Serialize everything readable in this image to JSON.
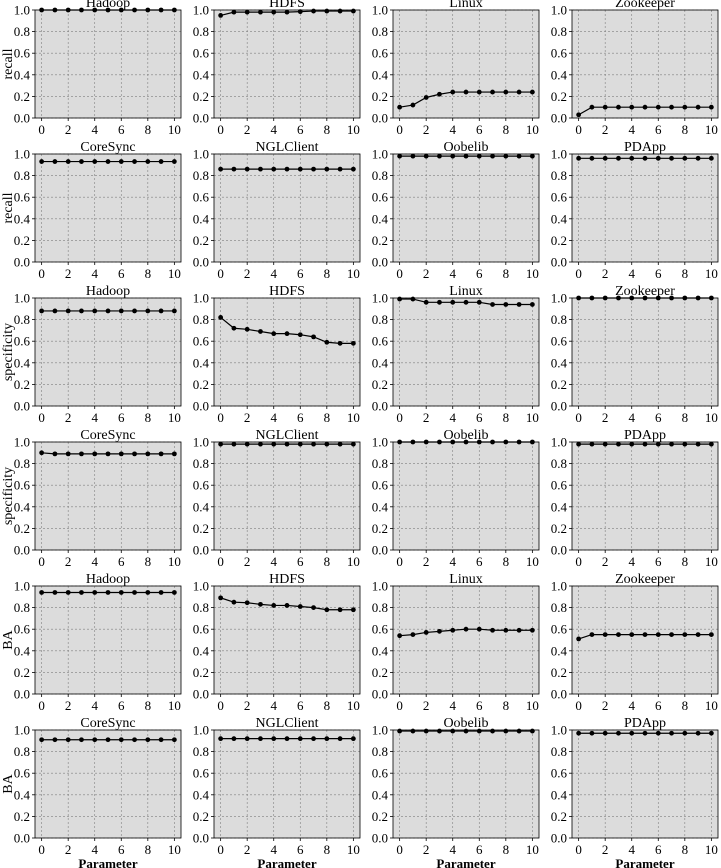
{
  "figure": {
    "x_label": "Parameter",
    "x_ticks": [
      0,
      2,
      4,
      6,
      8,
      10
    ],
    "y_ticks": [
      "0.0",
      "0.2",
      "0.4",
      "0.6",
      "0.8",
      "1.0"
    ],
    "background_color": "#dcdcdc",
    "line_color": "#000000",
    "grid_color": "#808080"
  },
  "chart_data": [
    {
      "type": "line",
      "row_label": "recall",
      "title": "Hadoop",
      "xlabel": "",
      "ylabel": "recall",
      "ylim": [
        0,
        1
      ],
      "grid": true,
      "x": [
        0,
        1,
        2,
        3,
        4,
        5,
        6,
        7,
        8,
        9,
        10
      ],
      "values": [
        1.0,
        1.0,
        1.0,
        1.0,
        1.0,
        1.0,
        1.0,
        1.0,
        1.0,
        1.0,
        1.0
      ]
    },
    {
      "type": "line",
      "row_label": "recall",
      "title": "HDFS",
      "xlabel": "",
      "ylabel": "",
      "ylim": [
        0,
        1
      ],
      "grid": true,
      "x": [
        0,
        1,
        2,
        3,
        4,
        5,
        6,
        7,
        8,
        9,
        10
      ],
      "values": [
        0.95,
        0.98,
        0.98,
        0.98,
        0.98,
        0.98,
        0.985,
        0.99,
        0.99,
        0.99,
        0.99
      ]
    },
    {
      "type": "line",
      "row_label": "recall",
      "title": "Linux",
      "xlabel": "",
      "ylabel": "",
      "ylim": [
        0,
        1
      ],
      "grid": true,
      "x": [
        0,
        1,
        2,
        3,
        4,
        5,
        6,
        7,
        8,
        9,
        10
      ],
      "values": [
        0.1,
        0.12,
        0.19,
        0.22,
        0.24,
        0.24,
        0.24,
        0.24,
        0.24,
        0.24,
        0.24
      ]
    },
    {
      "type": "line",
      "row_label": "recall",
      "title": "Zookeeper",
      "xlabel": "",
      "ylabel": "",
      "ylim": [
        0,
        1
      ],
      "grid": true,
      "x": [
        0,
        1,
        2,
        3,
        4,
        5,
        6,
        7,
        8,
        9,
        10
      ],
      "values": [
        0.03,
        0.1,
        0.1,
        0.1,
        0.1,
        0.1,
        0.1,
        0.1,
        0.1,
        0.1,
        0.1
      ]
    },
    {
      "type": "line",
      "row_label": "recall",
      "title": "CoreSync",
      "xlabel": "",
      "ylabel": "recall",
      "ylim": [
        0,
        1
      ],
      "grid": true,
      "x": [
        0,
        1,
        2,
        3,
        4,
        5,
        6,
        7,
        8,
        9,
        10
      ],
      "values": [
        0.93,
        0.93,
        0.93,
        0.93,
        0.93,
        0.93,
        0.93,
        0.93,
        0.93,
        0.93,
        0.93
      ]
    },
    {
      "type": "line",
      "row_label": "recall",
      "title": "NGLClient",
      "xlabel": "",
      "ylabel": "",
      "ylim": [
        0,
        1
      ],
      "grid": true,
      "x": [
        0,
        1,
        2,
        3,
        4,
        5,
        6,
        7,
        8,
        9,
        10
      ],
      "values": [
        0.86,
        0.86,
        0.86,
        0.86,
        0.86,
        0.86,
        0.86,
        0.86,
        0.86,
        0.86,
        0.86
      ]
    },
    {
      "type": "line",
      "row_label": "recall",
      "title": "Oobelib",
      "xlabel": "",
      "ylabel": "",
      "ylim": [
        0,
        1
      ],
      "grid": true,
      "x": [
        0,
        1,
        2,
        3,
        4,
        5,
        6,
        7,
        8,
        9,
        10
      ],
      "values": [
        0.98,
        0.98,
        0.98,
        0.98,
        0.98,
        0.98,
        0.98,
        0.98,
        0.98,
        0.98,
        0.98
      ]
    },
    {
      "type": "line",
      "row_label": "recall",
      "title": "PDApp",
      "xlabel": "",
      "ylabel": "",
      "ylim": [
        0,
        1
      ],
      "grid": true,
      "x": [
        0,
        1,
        2,
        3,
        4,
        5,
        6,
        7,
        8,
        9,
        10
      ],
      "values": [
        0.96,
        0.96,
        0.96,
        0.96,
        0.96,
        0.96,
        0.96,
        0.96,
        0.96,
        0.96,
        0.96
      ]
    },
    {
      "type": "line",
      "row_label": "specificity",
      "title": "Hadoop",
      "xlabel": "",
      "ylabel": "specificity",
      "ylim": [
        0,
        1
      ],
      "grid": true,
      "x": [
        0,
        1,
        2,
        3,
        4,
        5,
        6,
        7,
        8,
        9,
        10
      ],
      "values": [
        0.88,
        0.88,
        0.88,
        0.88,
        0.88,
        0.88,
        0.88,
        0.88,
        0.88,
        0.88,
        0.88
      ]
    },
    {
      "type": "line",
      "row_label": "specificity",
      "title": "HDFS",
      "xlabel": "",
      "ylabel": "",
      "ylim": [
        0,
        1
      ],
      "grid": true,
      "x": [
        0,
        1,
        2,
        3,
        4,
        5,
        6,
        7,
        8,
        9,
        10
      ],
      "values": [
        0.82,
        0.72,
        0.71,
        0.69,
        0.67,
        0.67,
        0.66,
        0.64,
        0.59,
        0.58,
        0.58
      ]
    },
    {
      "type": "line",
      "row_label": "specificity",
      "title": "Linux",
      "xlabel": "",
      "ylabel": "",
      "ylim": [
        0,
        1
      ],
      "grid": true,
      "x": [
        0,
        1,
        2,
        3,
        4,
        5,
        6,
        7,
        8,
        9,
        10
      ],
      "values": [
        0.99,
        0.99,
        0.96,
        0.96,
        0.96,
        0.96,
        0.96,
        0.94,
        0.94,
        0.94,
        0.94
      ]
    },
    {
      "type": "line",
      "row_label": "specificity",
      "title": "Zookeeper",
      "xlabel": "",
      "ylabel": "",
      "ylim": [
        0,
        1
      ],
      "grid": true,
      "x": [
        0,
        1,
        2,
        3,
        4,
        5,
        6,
        7,
        8,
        9,
        10
      ],
      "values": [
        1.0,
        1.0,
        1.0,
        1.0,
        1.0,
        1.0,
        1.0,
        1.0,
        1.0,
        1.0,
        1.0
      ]
    },
    {
      "type": "line",
      "row_label": "specificity",
      "title": "CoreSync",
      "xlabel": "",
      "ylabel": "specificity",
      "ylim": [
        0,
        1
      ],
      "grid": true,
      "x": [
        0,
        1,
        2,
        3,
        4,
        5,
        6,
        7,
        8,
        9,
        10
      ],
      "values": [
        0.9,
        0.89,
        0.89,
        0.89,
        0.89,
        0.89,
        0.89,
        0.89,
        0.89,
        0.89,
        0.89
      ]
    },
    {
      "type": "line",
      "row_label": "specificity",
      "title": "NGLClient",
      "xlabel": "",
      "ylabel": "",
      "ylim": [
        0,
        1
      ],
      "grid": true,
      "x": [
        0,
        1,
        2,
        3,
        4,
        5,
        6,
        7,
        8,
        9,
        10
      ],
      "values": [
        0.98,
        0.98,
        0.98,
        0.98,
        0.98,
        0.98,
        0.98,
        0.98,
        0.98,
        0.98,
        0.98
      ]
    },
    {
      "type": "line",
      "row_label": "specificity",
      "title": "Oobelib",
      "xlabel": "",
      "ylabel": "",
      "ylim": [
        0,
        1
      ],
      "grid": true,
      "x": [
        0,
        1,
        2,
        3,
        4,
        5,
        6,
        7,
        8,
        9,
        10
      ],
      "values": [
        1.0,
        1.0,
        1.0,
        1.0,
        1.0,
        1.0,
        1.0,
        1.0,
        1.0,
        1.0,
        1.0
      ]
    },
    {
      "type": "line",
      "row_label": "specificity",
      "title": "PDApp",
      "xlabel": "",
      "ylabel": "",
      "ylim": [
        0,
        1
      ],
      "grid": true,
      "x": [
        0,
        1,
        2,
        3,
        4,
        5,
        6,
        7,
        8,
        9,
        10
      ],
      "values": [
        0.98,
        0.98,
        0.98,
        0.98,
        0.98,
        0.98,
        0.98,
        0.98,
        0.98,
        0.98,
        0.98
      ]
    },
    {
      "type": "line",
      "row_label": "BA",
      "title": "Hadoop",
      "xlabel": "",
      "ylabel": "BA",
      "ylim": [
        0,
        1
      ],
      "grid": true,
      "x": [
        0,
        1,
        2,
        3,
        4,
        5,
        6,
        7,
        8,
        9,
        10
      ],
      "values": [
        0.94,
        0.94,
        0.94,
        0.94,
        0.94,
        0.94,
        0.94,
        0.94,
        0.94,
        0.94,
        0.94
      ]
    },
    {
      "type": "line",
      "row_label": "BA",
      "title": "HDFS",
      "xlabel": "",
      "ylabel": "",
      "ylim": [
        0,
        1
      ],
      "grid": true,
      "x": [
        0,
        1,
        2,
        3,
        4,
        5,
        6,
        7,
        8,
        9,
        10
      ],
      "values": [
        0.89,
        0.85,
        0.845,
        0.83,
        0.82,
        0.82,
        0.81,
        0.8,
        0.78,
        0.78,
        0.78
      ]
    },
    {
      "type": "line",
      "row_label": "BA",
      "title": "Linux",
      "xlabel": "",
      "ylabel": "",
      "ylim": [
        0,
        1
      ],
      "grid": true,
      "x": [
        0,
        1,
        2,
        3,
        4,
        5,
        6,
        7,
        8,
        9,
        10
      ],
      "values": [
        0.54,
        0.55,
        0.57,
        0.58,
        0.59,
        0.6,
        0.6,
        0.59,
        0.59,
        0.59,
        0.59
      ]
    },
    {
      "type": "line",
      "row_label": "BA",
      "title": "Zookeeper",
      "xlabel": "",
      "ylabel": "",
      "ylim": [
        0,
        1
      ],
      "grid": true,
      "x": [
        0,
        1,
        2,
        3,
        4,
        5,
        6,
        7,
        8,
        9,
        10
      ],
      "values": [
        0.51,
        0.55,
        0.55,
        0.55,
        0.55,
        0.55,
        0.55,
        0.55,
        0.55,
        0.55,
        0.55
      ]
    },
    {
      "type": "line",
      "row_label": "BA",
      "title": "CoreSync",
      "xlabel": "Parameter",
      "ylabel": "BA",
      "ylim": [
        0,
        1
      ],
      "grid": true,
      "x": [
        0,
        1,
        2,
        3,
        4,
        5,
        6,
        7,
        8,
        9,
        10
      ],
      "values": [
        0.91,
        0.91,
        0.91,
        0.91,
        0.91,
        0.91,
        0.91,
        0.91,
        0.91,
        0.91,
        0.91
      ]
    },
    {
      "type": "line",
      "row_label": "BA",
      "title": "NGLClient",
      "xlabel": "Parameter",
      "ylabel": "",
      "ylim": [
        0,
        1
      ],
      "grid": true,
      "x": [
        0,
        1,
        2,
        3,
        4,
        5,
        6,
        7,
        8,
        9,
        10
      ],
      "values": [
        0.92,
        0.92,
        0.92,
        0.92,
        0.92,
        0.92,
        0.92,
        0.92,
        0.92,
        0.92,
        0.92
      ]
    },
    {
      "type": "line",
      "row_label": "BA",
      "title": "Oobelib",
      "xlabel": "Parameter",
      "ylabel": "",
      "ylim": [
        0,
        1
      ],
      "grid": true,
      "x": [
        0,
        1,
        2,
        3,
        4,
        5,
        6,
        7,
        8,
        9,
        10
      ],
      "values": [
        0.99,
        0.99,
        0.99,
        0.99,
        0.99,
        0.99,
        0.99,
        0.99,
        0.99,
        0.99,
        0.99
      ]
    },
    {
      "type": "line",
      "row_label": "BA",
      "title": "PDApp",
      "xlabel": "Parameter",
      "ylabel": "",
      "ylim": [
        0,
        1
      ],
      "grid": true,
      "x": [
        0,
        1,
        2,
        3,
        4,
        5,
        6,
        7,
        8,
        9,
        10
      ],
      "values": [
        0.97,
        0.97,
        0.97,
        0.97,
        0.97,
        0.97,
        0.97,
        0.97,
        0.97,
        0.97,
        0.97
      ]
    }
  ]
}
